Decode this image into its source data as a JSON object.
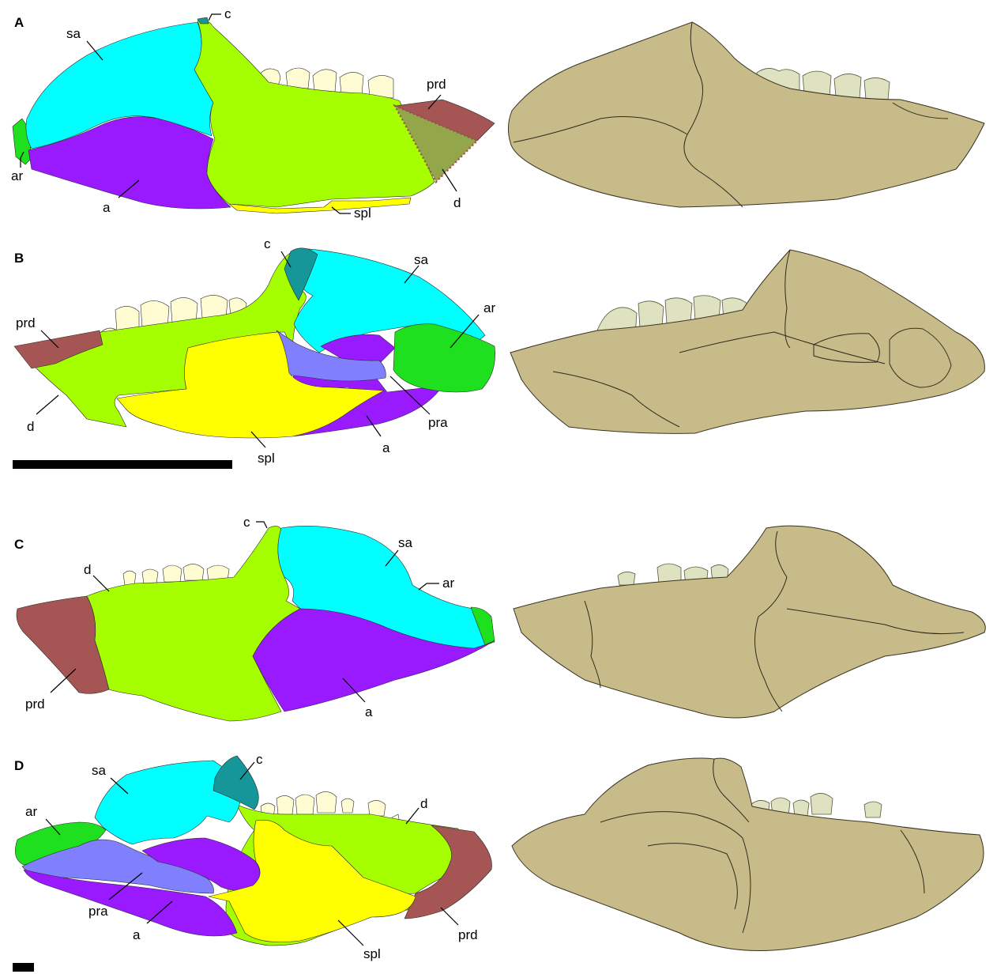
{
  "colors": {
    "sa": "#00ffff",
    "d": "#a6ff00",
    "a": "#9a1aff",
    "ar": "#1ee01e",
    "prd": "#a65555",
    "spl": "#ffff00",
    "pra": "#8080ff",
    "c": "#159799",
    "teeth": "#fffbd2",
    "scan": "#c7bb8a"
  },
  "panels": [
    {
      "id": "A",
      "label": "A",
      "labels": {
        "sa": "sa",
        "c": "c",
        "prd": "prd",
        "ar": "ar",
        "a": "a",
        "spl": "spl",
        "d": "d"
      }
    },
    {
      "id": "B",
      "label": "B",
      "labels": {
        "c": "c",
        "sa": "sa",
        "prd": "prd",
        "ar": "ar",
        "d": "d",
        "pra": "pra",
        "spl": "spl",
        "a": "a"
      }
    },
    {
      "id": "C",
      "label": "C",
      "labels": {
        "c": "c",
        "sa": "sa",
        "d": "d",
        "ar": "ar",
        "prd": "prd",
        "a": "a"
      }
    },
    {
      "id": "D",
      "label": "D",
      "labels": {
        "c": "c",
        "sa": "sa",
        "ar": "ar",
        "d": "d",
        "pra": "pra",
        "prd": "prd",
        "a": "a",
        "spl": "spl"
      }
    }
  ]
}
